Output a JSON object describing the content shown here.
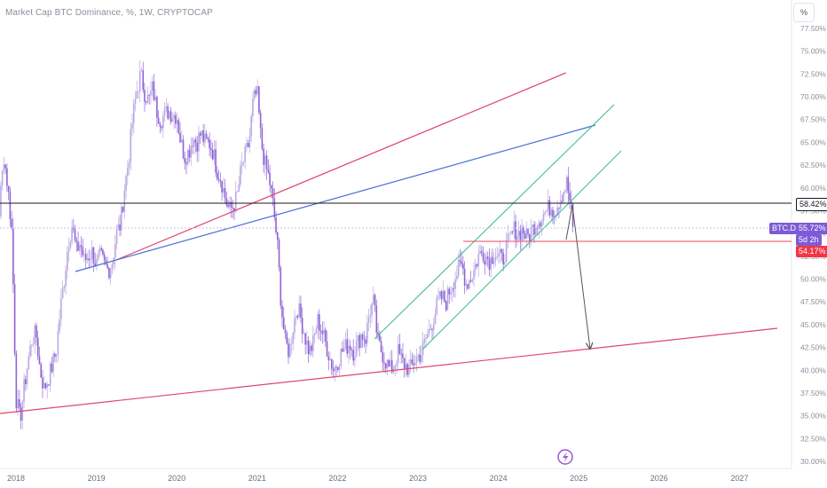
{
  "header": {
    "title": "Market Cap BTC Dominance, %, 1W, CRYPTOCAP"
  },
  "toolbar": {
    "percent_label": "%"
  },
  "price_tags": {
    "ray_value": "58.42%",
    "symbol": "BTC.D",
    "current_value": "55.72%",
    "countdown": "5d 2h",
    "level_value": "54.17%"
  },
  "colors": {
    "candle_up": "#b7a9e4",
    "candle_down": "#8e63d6",
    "trend_red": "#e0456f",
    "trend_blue": "#4a6fd6",
    "channel_green": "#3fbf95",
    "horizontal_red": "#e84a5f",
    "symbol_tag": "#7e5bd6",
    "level_tag": "#f23645"
  },
  "chart_data": {
    "type": "candlestick",
    "title": "Market Cap BTC Dominance, %, 1W, CRYPTOCAP",
    "x_ticks": [
      "2018",
      "2019",
      "2020",
      "2021",
      "2022",
      "2023",
      "2024",
      "2025",
      "2026",
      "2027"
    ],
    "y_ticks": [
      "30.00%",
      "32.50%",
      "35.00%",
      "37.50%",
      "40.00%",
      "42.50%",
      "45.00%",
      "47.50%",
      "50.00%",
      "52.50%",
      "55.00%",
      "57.50%",
      "60.00%",
      "62.50%",
      "65.00%",
      "67.50%",
      "70.00%",
      "72.50%",
      "75.00%",
      "77.50%"
    ],
    "y_range": [
      29.5,
      80.5
    ],
    "x_range": [
      2017.6,
      2028.0
    ],
    "series": [
      {
        "values": [
          [
            2017.6,
            60.5
          ],
          [
            2017.65,
            63.0
          ],
          [
            2017.7,
            54.0
          ],
          [
            2017.75,
            51.0
          ],
          [
            2017.8,
            58.5
          ],
          [
            2017.85,
            63.5
          ],
          [
            2017.9,
            60.0
          ],
          [
            2017.95,
            55.0
          ],
          [
            2018.0,
            37.0
          ],
          [
            2018.05,
            34.5
          ],
          [
            2018.1,
            38.0
          ],
          [
            2018.15,
            41.0
          ],
          [
            2018.2,
            43.5
          ],
          [
            2018.25,
            44.0
          ],
          [
            2018.3,
            40.0
          ],
          [
            2018.35,
            38.0
          ],
          [
            2018.4,
            39.0
          ],
          [
            2018.45,
            40.5
          ],
          [
            2018.5,
            42.0
          ],
          [
            2018.55,
            46.5
          ],
          [
            2018.6,
            50.0
          ],
          [
            2018.65,
            54.0
          ],
          [
            2018.7,
            56.0
          ],
          [
            2018.75,
            53.0
          ],
          [
            2018.8,
            54.0
          ],
          [
            2018.85,
            52.0
          ],
          [
            2018.9,
            52.5
          ],
          [
            2018.95,
            53.0
          ],
          [
            2019.0,
            51.5
          ],
          [
            2019.05,
            52.5
          ],
          [
            2019.1,
            51.5
          ],
          [
            2019.15,
            51.0
          ],
          [
            2019.2,
            52.0
          ],
          [
            2019.25,
            55.0
          ],
          [
            2019.3,
            56.0
          ],
          [
            2019.35,
            60.0
          ],
          [
            2019.4,
            63.0
          ],
          [
            2019.45,
            67.5
          ],
          [
            2019.5,
            70.5
          ],
          [
            2019.55,
            72.5
          ],
          [
            2019.6,
            70.5
          ],
          [
            2019.65,
            69.5
          ],
          [
            2019.7,
            71.0
          ],
          [
            2019.75,
            68.5
          ],
          [
            2019.8,
            67.5
          ],
          [
            2019.85,
            68.0
          ],
          [
            2019.9,
            68.5
          ],
          [
            2019.95,
            68.0
          ],
          [
            2020.0,
            68.0
          ],
          [
            2020.05,
            65.0
          ],
          [
            2020.1,
            63.5
          ],
          [
            2020.15,
            64.0
          ],
          [
            2020.2,
            65.5
          ],
          [
            2020.25,
            65.0
          ],
          [
            2020.3,
            66.0
          ],
          [
            2020.35,
            65.0
          ],
          [
            2020.4,
            65.0
          ],
          [
            2020.45,
            64.0
          ],
          [
            2020.5,
            62.0
          ],
          [
            2020.55,
            61.0
          ],
          [
            2020.6,
            59.0
          ],
          [
            2020.65,
            57.5
          ],
          [
            2020.7,
            58.0
          ],
          [
            2020.75,
            59.0
          ],
          [
            2020.8,
            62.0
          ],
          [
            2020.85,
            63.5
          ],
          [
            2020.9,
            65.0
          ],
          [
            2020.95,
            69.5
          ],
          [
            2021.0,
            70.5
          ],
          [
            2021.05,
            65.0
          ],
          [
            2021.1,
            62.5
          ],
          [
            2021.15,
            61.0
          ],
          [
            2021.2,
            58.0
          ],
          [
            2021.25,
            54.0
          ],
          [
            2021.3,
            47.0
          ],
          [
            2021.35,
            43.0
          ],
          [
            2021.4,
            42.0
          ],
          [
            2021.45,
            45.0
          ],
          [
            2021.5,
            47.0
          ],
          [
            2021.55,
            45.5
          ],
          [
            2021.6,
            43.5
          ],
          [
            2021.65,
            42.0
          ],
          [
            2021.7,
            43.0
          ],
          [
            2021.75,
            45.5
          ],
          [
            2021.8,
            44.5
          ],
          [
            2021.85,
            43.0
          ],
          [
            2021.9,
            41.5
          ],
          [
            2021.95,
            40.0
          ],
          [
            2022.0,
            41.0
          ],
          [
            2022.05,
            42.0
          ],
          [
            2022.1,
            42.5
          ],
          [
            2022.15,
            43.0
          ],
          [
            2022.2,
            42.0
          ],
          [
            2022.25,
            43.0
          ],
          [
            2022.3,
            44.0
          ],
          [
            2022.35,
            43.5
          ],
          [
            2022.4,
            46.5
          ],
          [
            2022.45,
            47.5
          ],
          [
            2022.5,
            43.0
          ],
          [
            2022.55,
            42.0
          ],
          [
            2022.6,
            41.0
          ],
          [
            2022.65,
            40.0
          ],
          [
            2022.7,
            40.5
          ],
          [
            2022.75,
            42.0
          ],
          [
            2022.8,
            41.0
          ],
          [
            2022.85,
            40.5
          ],
          [
            2022.9,
            40.0
          ],
          [
            2022.95,
            41.0
          ],
          [
            2023.0,
            41.5
          ],
          [
            2023.05,
            42.0
          ],
          [
            2023.1,
            43.5
          ],
          [
            2023.15,
            44.5
          ],
          [
            2023.2,
            46.0
          ],
          [
            2023.25,
            47.5
          ],
          [
            2023.3,
            48.0
          ],
          [
            2023.35,
            47.5
          ],
          [
            2023.4,
            49.0
          ],
          [
            2023.45,
            50.0
          ],
          [
            2023.5,
            51.0
          ],
          [
            2023.55,
            51.5
          ],
          [
            2023.6,
            49.5
          ],
          [
            2023.65,
            50.0
          ],
          [
            2023.7,
            51.0
          ],
          [
            2023.75,
            52.5
          ],
          [
            2023.8,
            53.0
          ],
          [
            2023.85,
            52.5
          ],
          [
            2023.9,
            52.0
          ],
          [
            2023.95,
            53.0
          ],
          [
            2024.0,
            52.5
          ],
          [
            2024.05,
            52.0
          ],
          [
            2024.1,
            53.5
          ],
          [
            2024.15,
            54.5
          ],
          [
            2024.2,
            55.5
          ],
          [
            2024.25,
            55.0
          ],
          [
            2024.3,
            55.5
          ],
          [
            2024.35,
            54.5
          ],
          [
            2024.4,
            55.0
          ],
          [
            2024.45,
            56.0
          ],
          [
            2024.5,
            56.5
          ],
          [
            2024.55,
            57.0
          ],
          [
            2024.6,
            57.5
          ],
          [
            2024.65,
            58.0
          ],
          [
            2024.7,
            57.5
          ],
          [
            2024.75,
            58.5
          ],
          [
            2024.8,
            59.5
          ],
          [
            2024.85,
            60.5
          ],
          [
            2024.9,
            58.0
          ],
          [
            2024.93,
            55.72
          ]
        ]
      }
    ],
    "annotations": {
      "horizontal_ray": 58.42,
      "horizontal_level": 54.17,
      "current_price": 55.72
    },
    "grid": false,
    "y_axis": "right"
  }
}
